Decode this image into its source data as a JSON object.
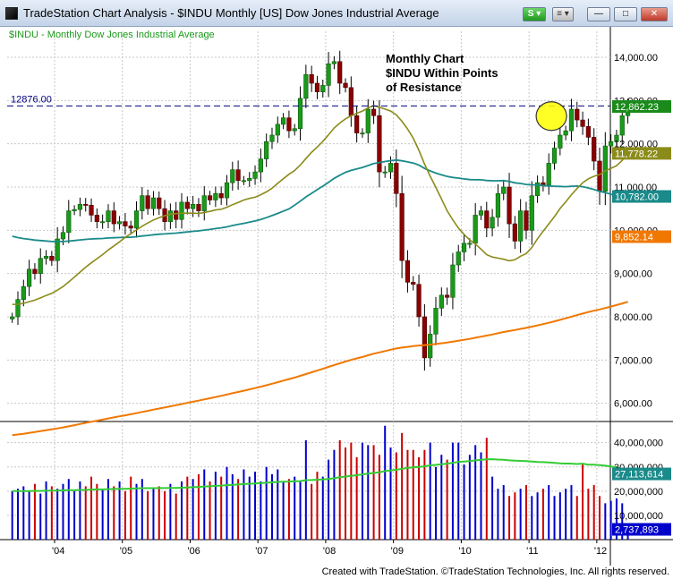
{
  "window": {
    "title": "TradeStation Chart Analysis - $INDU Monthly [US] Dow Jones Industrial Average",
    "s_label": "S",
    "s_dropdown": "▾",
    "menu_label": "≡ ▾",
    "min_label": "—",
    "max_label": "□",
    "close_label": "✕"
  },
  "footer": {
    "text": "Created with TradeStation. ©TradeStation Technologies, Inc. All rights reserved."
  },
  "colors": {
    "up": "#1a9a1a",
    "down": "#8b0000",
    "ma_olive": "#8b8b1a",
    "ma_teal": "#1a8a8a",
    "ma_orange": "#f07800",
    "vol_blue": "#0000cc",
    "vol_red": "#cc0000",
    "vol_avg": "#33cc33",
    "resistance": "#000080",
    "grid": "#c8c8c8",
    "highlight": "#ffff00"
  },
  "chart_data": [
    {
      "type": "candlestick",
      "legend": "$INDU - Monthly  Dow Jones Industrial Average",
      "ylim": [
        5600,
        14600
      ],
      "yticks": [
        6000,
        7000,
        8000,
        9000,
        10000,
        11000,
        12000,
        13000,
        14000
      ],
      "ytick_labels": [
        "6,000.00",
        "7,000.00",
        "8,000.00",
        "9,000.00",
        "10,000.00",
        "11,000.00",
        "12,000.00",
        "13,000.00",
        "14,000.00"
      ],
      "x_range": [
        2003.3,
        2012.2
      ],
      "x_ticks": [
        2004,
        2005,
        2006,
        2007,
        2008,
        2009,
        2010,
        2011,
        2012
      ],
      "x_tick_labels": [
        "'04",
        "'05",
        "'06",
        "'07",
        "'08",
        "'09",
        "'10",
        "'11",
        "'12"
      ],
      "resistance": {
        "value": 12876,
        "label": "12876.00"
      },
      "annotation": [
        "Monthly Chart",
        "$INDU Within Points",
        "of Resistance"
      ],
      "price_tag": {
        "value": 12862.23,
        "label": "12,862.23"
      },
      "highlight_circle": {
        "x": 2011.33,
        "y": 12640
      },
      "closes": [
        8000,
        8400,
        8700,
        9100,
        9000,
        9350,
        9400,
        9300,
        9800,
        9950,
        10450,
        10480,
        10600,
        10580,
        10350,
        10200,
        10200,
        10450,
        10150,
        10200,
        10100,
        10050,
        10450,
        10800,
        10500,
        10750,
        10500,
        10200,
        10450,
        10250,
        10650,
        10500,
        10600,
        10450,
        10800,
        10700,
        10850,
        10750,
        11100,
        11400,
        11150,
        11150,
        11200,
        11350,
        11650,
        12050,
        12200,
        12450,
        12600,
        12300,
        12350,
        13050,
        13600,
        13400,
        13200,
        13350,
        13850,
        13900,
        13400,
        13300,
        12650,
        12250,
        12250,
        12800,
        12650,
        11350,
        11350,
        11550,
        10850,
        9300,
        8800,
        8750,
        8000,
        7050,
        7600,
        8200,
        8500,
        8450,
        9200,
        9500,
        9700,
        9700,
        10350,
        10450,
        10050,
        10300,
        10850,
        11000,
        10150,
        9750,
        10450,
        10000,
        10800,
        11100,
        11050,
        11550,
        11900,
        12200,
        12300,
        12800,
        12550,
        12400,
        12150,
        11600,
        10900,
        11950,
        12050,
        12200,
        12650,
        12862.23
      ],
      "opens_first": 7950,
      "series": [
        {
          "name": "",
          "label": "11,778.22",
          "last": 11778.22
        },
        {
          "name": "",
          "label": "10,782.00",
          "last": 10782.0
        },
        {
          "name": "",
          "label": "9,852.14",
          "last": 9852.14
        }
      ]
    },
    {
      "type": "bar",
      "ylim": [
        0,
        48000000
      ],
      "yticks": [
        10000000,
        20000000,
        30000000,
        40000000
      ],
      "ytick_labels": [
        "10,000,000",
        "20,000,000",
        "30,000,000",
        "40,000,000"
      ],
      "avg_label": "27,113,614",
      "last_label": "2,737,893"
    }
  ]
}
